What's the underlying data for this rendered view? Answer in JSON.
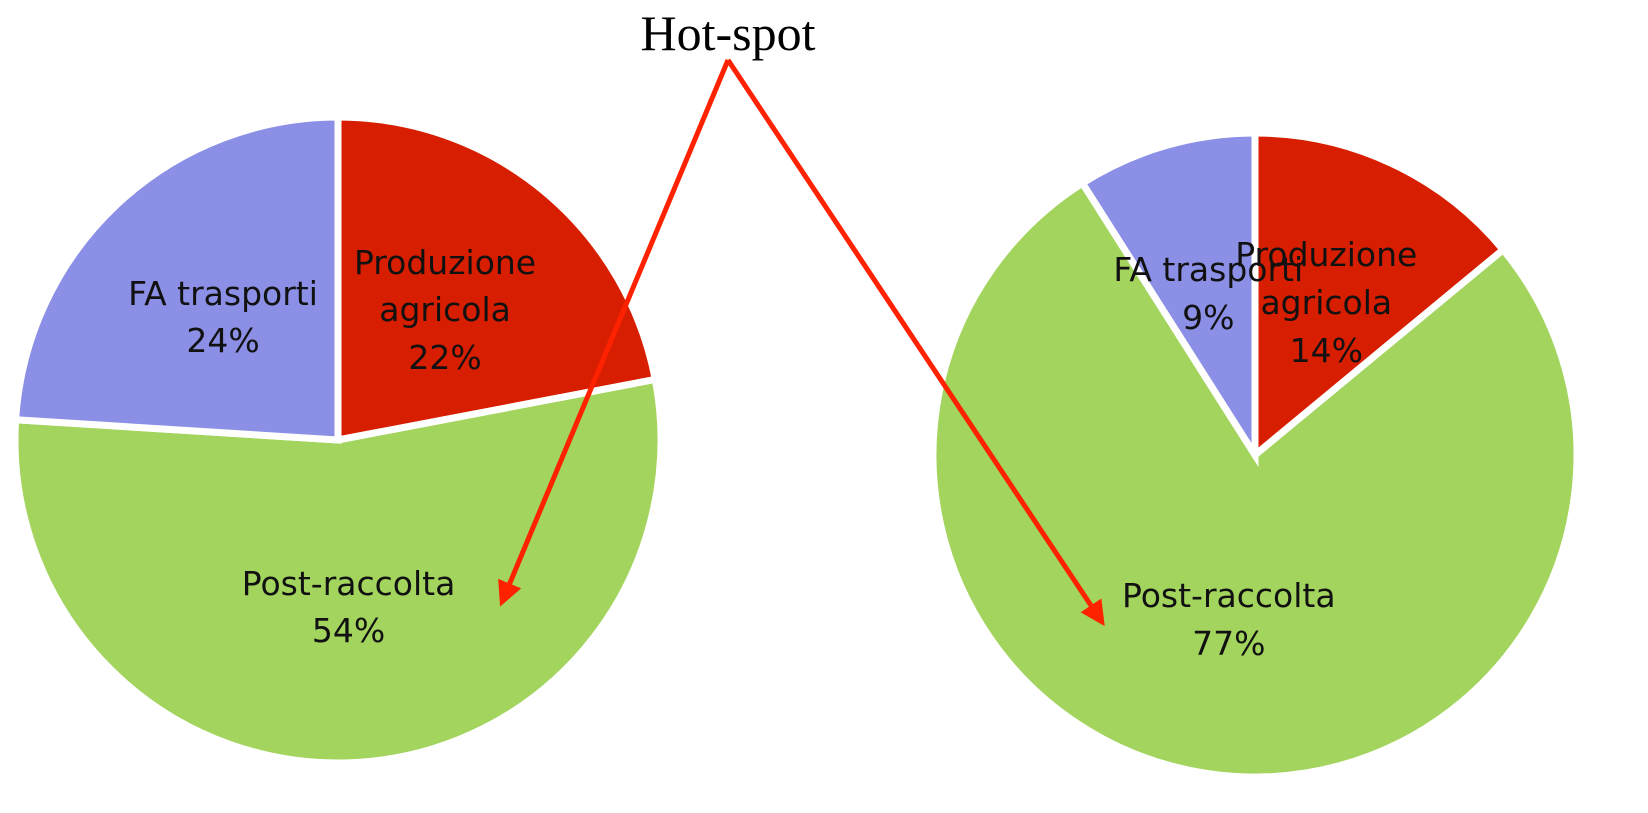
{
  "title": "Hot-spot",
  "chart_data": [
    {
      "type": "pie",
      "categories": [
        "Produzione agricola",
        "Post-raccolta",
        "FA trasporti"
      ],
      "values": [
        22,
        54,
        24
      ],
      "value_labels": [
        "22%",
        "54%",
        "24%"
      ],
      "colors": [
        "#d81e00",
        "#a2d45e",
        "#8b8fe5"
      ]
    },
    {
      "type": "pie",
      "categories": [
        "Produzione agricola",
        "Post-raccolta",
        "FA trasporti"
      ],
      "values": [
        14,
        77,
        9
      ],
      "value_labels": [
        "14%",
        "77%",
        "9%"
      ],
      "colors": [
        "#d81e00",
        "#a2d45e",
        "#8b8fe5"
      ]
    }
  ]
}
